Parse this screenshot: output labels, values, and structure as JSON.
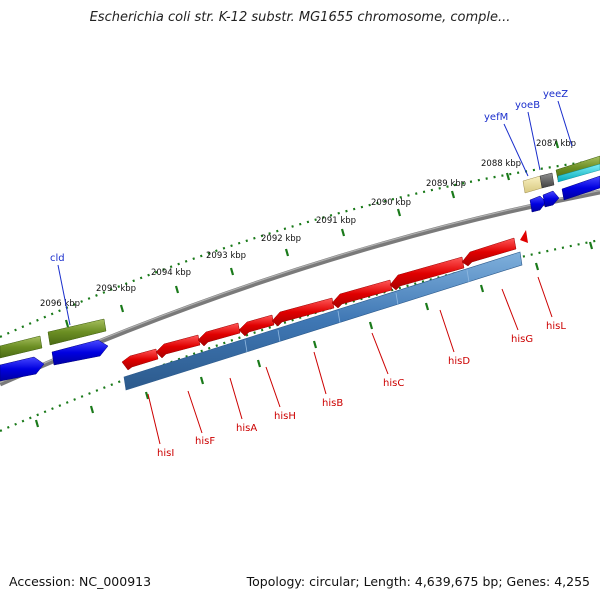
{
  "title": "Escherichia coli str. K-12 substr. MG1655 chromosome, comple...",
  "footer": {
    "accession": "Accession: NC_000913",
    "stats": "Topology: circular; Length: 4,639,675 bp; Genes: 4,255"
  },
  "ruler": {
    "ticks": [
      {
        "label": "2087 kbp"
      },
      {
        "label": "2088 kbp"
      },
      {
        "label": "2089 kbp"
      },
      {
        "label": "2090 kbp"
      },
      {
        "label": "2091 kbp"
      },
      {
        "label": "2092 kbp"
      },
      {
        "label": "2093 kbp"
      },
      {
        "label": "2094 kbp"
      },
      {
        "label": "2095 kbp"
      },
      {
        "label": "2096 kbp"
      }
    ]
  },
  "genes_reverse": [
    {
      "name": "hisI"
    },
    {
      "name": "hisF"
    },
    {
      "name": "hisA"
    },
    {
      "name": "hisH"
    },
    {
      "name": "hisB"
    },
    {
      "name": "hisC"
    },
    {
      "name": "hisD"
    },
    {
      "name": "hisG"
    },
    {
      "name": "hisL"
    }
  ],
  "genes_forward": [
    {
      "name": "cld"
    },
    {
      "name": "yefM"
    },
    {
      "name": "yoeB"
    },
    {
      "name": "yeeZ"
    }
  ],
  "colors": {
    "reverse_label": "#cc0000",
    "forward_label": "#1a2ecc",
    "cds_red": "#e00000",
    "gene_blue": "#3f77b4",
    "forward_blue": "#0000e0",
    "olive": "#6b8e23",
    "cyan": "#00c8d8",
    "tick_green": "#1a7a1a",
    "backbone": "#808080"
  }
}
